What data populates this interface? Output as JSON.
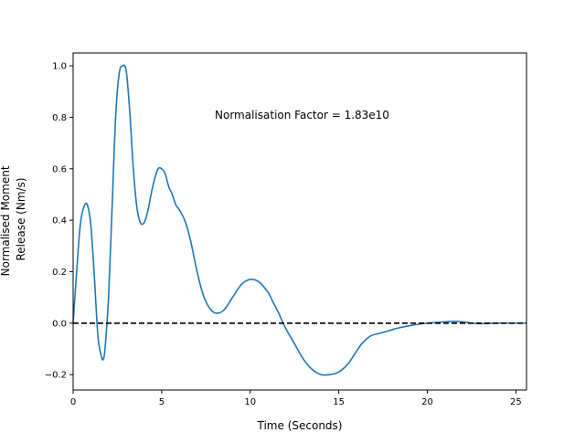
{
  "chart_data": {
    "type": "line",
    "title": "",
    "xlabel": "Time (Seconds)",
    "ylabel_lines": [
      "Normalised Moment",
      "Release (Nm/s)"
    ],
    "xlim": [
      0,
      25.6
    ],
    "ylim": [
      -0.26,
      1.05
    ],
    "x_ticks": [
      0,
      5,
      10,
      15,
      20,
      25
    ],
    "x_tick_labels": [
      "0",
      "5",
      "10",
      "15",
      "20",
      "25"
    ],
    "y_ticks": [
      -0.2,
      0.0,
      0.2,
      0.4,
      0.6,
      0.8,
      1.0
    ],
    "y_tick_labels": [
      "−0.2",
      "0.0",
      "0.2",
      "0.4",
      "0.6",
      "0.8",
      "1.0"
    ],
    "grid": false,
    "annotation": "Normalisation Factor = 1.83e10",
    "reference_line": {
      "y": 0.0,
      "style": "dashed",
      "color": "#000000"
    },
    "series": [
      {
        "color": "#1f77b4",
        "x": [
          0,
          0.2,
          0.4,
          0.6,
          0.8,
          1.0,
          1.2,
          1.4,
          1.6,
          1.7,
          1.8,
          2.0,
          2.2,
          2.4,
          2.6,
          2.8,
          3.0,
          3.2,
          3.4,
          3.6,
          3.8,
          4.0,
          4.2,
          4.4,
          4.6,
          4.8,
          5.0,
          5.2,
          5.4,
          5.6,
          5.8,
          6.0,
          6.3,
          6.6,
          7.0,
          7.3,
          7.6,
          8.0,
          8.5,
          9.0,
          9.5,
          10.0,
          10.5,
          11.0,
          11.3,
          11.6,
          12.0,
          12.5,
          13.0,
          13.5,
          14.0,
          14.5,
          15.0,
          15.5,
          15.9,
          16.3,
          16.8,
          17.3,
          17.8,
          18.3,
          19.0,
          20.0,
          21.0,
          21.5,
          22.0,
          22.5,
          23.0,
          23.5,
          24.0,
          24.5,
          25.0,
          25.6
        ],
        "values": [
          0.0,
          0.2,
          0.38,
          0.45,
          0.46,
          0.38,
          0.18,
          -0.05,
          -0.13,
          -0.14,
          -0.1,
          0.1,
          0.45,
          0.8,
          0.97,
          1.0,
          0.98,
          0.82,
          0.6,
          0.45,
          0.39,
          0.39,
          0.43,
          0.5,
          0.56,
          0.6,
          0.6,
          0.58,
          0.53,
          0.5,
          0.46,
          0.44,
          0.4,
          0.33,
          0.2,
          0.12,
          0.07,
          0.04,
          0.05,
          0.1,
          0.15,
          0.17,
          0.16,
          0.12,
          0.08,
          0.04,
          -0.02,
          -0.08,
          -0.14,
          -0.18,
          -0.2,
          -0.2,
          -0.19,
          -0.16,
          -0.12,
          -0.08,
          -0.05,
          -0.04,
          -0.03,
          -0.02,
          -0.01,
          0.0,
          0.005,
          0.007,
          0.005,
          0.0,
          -0.002,
          -0.001,
          0.0,
          0.0,
          0.0,
          0.0
        ]
      }
    ]
  }
}
